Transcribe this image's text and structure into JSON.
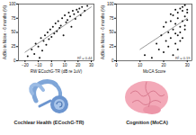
{
  "chart_data": [
    {
      "type": "scatter",
      "x_label": "RW ECochG-TR (dB re 1uV)",
      "y_label": "AzBio in Noise - 6 months (%)",
      "annotation": "R² = 0.44",
      "color": "#111111",
      "x": [
        -18,
        -15,
        -13,
        -12,
        -10,
        -9,
        -8,
        -7,
        -6,
        -5,
        -4,
        -3,
        -2,
        -1,
        0,
        1,
        2,
        3,
        4,
        5,
        6,
        7,
        8,
        9,
        10,
        11,
        12,
        13,
        14,
        15,
        16,
        17,
        18,
        19,
        20,
        21,
        22,
        23,
        25,
        27
      ],
      "values": [
        8,
        20,
        12,
        30,
        25,
        5,
        40,
        18,
        35,
        45,
        28,
        50,
        38,
        55,
        42,
        60,
        48,
        66,
        52,
        70,
        58,
        62,
        75,
        45,
        80,
        68,
        72,
        85,
        78,
        60,
        88,
        82,
        74,
        90,
        86,
        92,
        80,
        95,
        88,
        97
      ],
      "fit": {
        "x": [
          -20,
          30
        ],
        "y": [
          15,
          95
        ]
      },
      "xlim": [
        -25,
        32
      ],
      "xticks": [
        -20,
        -10,
        0,
        10,
        20,
        30
      ],
      "ylim": [
        0,
        100
      ],
      "yticks": [
        0,
        25,
        50,
        75,
        100
      ]
    },
    {
      "type": "scatter",
      "x_label": "MoCA Score",
      "y_label": "AzBio in Noise - 6 months (%)",
      "annotation": "R² = 0.19",
      "color": "#111111",
      "x": [
        12,
        15,
        17,
        18,
        19,
        20,
        20,
        21,
        22,
        22,
        23,
        23,
        24,
        24,
        25,
        25,
        25,
        26,
        26,
        26,
        27,
        27,
        27,
        28,
        28,
        28,
        29,
        29,
        29,
        30,
        30,
        24,
        21,
        26,
        28,
        27,
        29,
        23,
        25,
        30
      ],
      "values": [
        10,
        5,
        30,
        20,
        45,
        15,
        60,
        35,
        50,
        25,
        70,
        40,
        55,
        80,
        30,
        65,
        90,
        45,
        75,
        85,
        60,
        92,
        50,
        70,
        88,
        95,
        78,
        62,
        98,
        85,
        72,
        10,
        68,
        20,
        40,
        35,
        55,
        82,
        48,
        90
      ],
      "fit": {
        "x": [
          10,
          30
        ],
        "y": [
          20,
          75
        ]
      },
      "xlim": [
        0,
        32
      ],
      "xticks": [
        0,
        10,
        20,
        30
      ],
      "ylim": [
        0,
        100
      ],
      "yticks": [
        0,
        25,
        50,
        75,
        100
      ]
    }
  ],
  "figure_labels": [
    "Cochlear Health (ECochG-TR)",
    "Cognition (MoCA)"
  ]
}
